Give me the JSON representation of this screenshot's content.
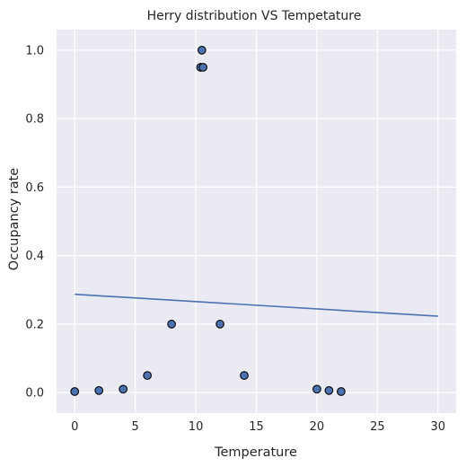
{
  "chart_data": {
    "type": "scatter",
    "title": "Herry distribution VS Tempetature",
    "xlabel": "Temperature",
    "ylabel": "Occupancy rate",
    "xlim": [
      -1.5,
      31.5
    ],
    "ylim": [
      -0.06,
      1.06
    ],
    "xticks": [
      0,
      5,
      10,
      15,
      20,
      25,
      30
    ],
    "yticks": [
      0.0,
      0.2,
      0.4,
      0.6,
      0.8,
      1.0
    ],
    "xtick_labels": [
      "0",
      "5",
      "10",
      "15",
      "20",
      "25",
      "30"
    ],
    "ytick_labels": [
      "0.0",
      "0.2",
      "0.4",
      "0.6",
      "0.8",
      "1.0"
    ],
    "grid": true,
    "background_color": "#eaeaf2",
    "grid_color": "#ffffff",
    "point_color": "#4c72b0",
    "point_edge_color": "#000000",
    "line_color": "#4c72b0",
    "points": [
      {
        "x": 0,
        "y": 0.003
      },
      {
        "x": 2,
        "y": 0.006
      },
      {
        "x": 4,
        "y": 0.01
      },
      {
        "x": 6,
        "y": 0.05
      },
      {
        "x": 8,
        "y": 0.2
      },
      {
        "x": 10.4,
        "y": 0.95
      },
      {
        "x": 10.5,
        "y": 1.0
      },
      {
        "x": 10.6,
        "y": 0.95
      },
      {
        "x": 12,
        "y": 0.2
      },
      {
        "x": 14,
        "y": 0.05
      },
      {
        "x": 20,
        "y": 0.01
      },
      {
        "x": 21,
        "y": 0.006
      },
      {
        "x": 22,
        "y": 0.003
      }
    ],
    "fit_line": {
      "x": [
        0,
        30
      ],
      "y": [
        0.287,
        0.223
      ]
    }
  }
}
